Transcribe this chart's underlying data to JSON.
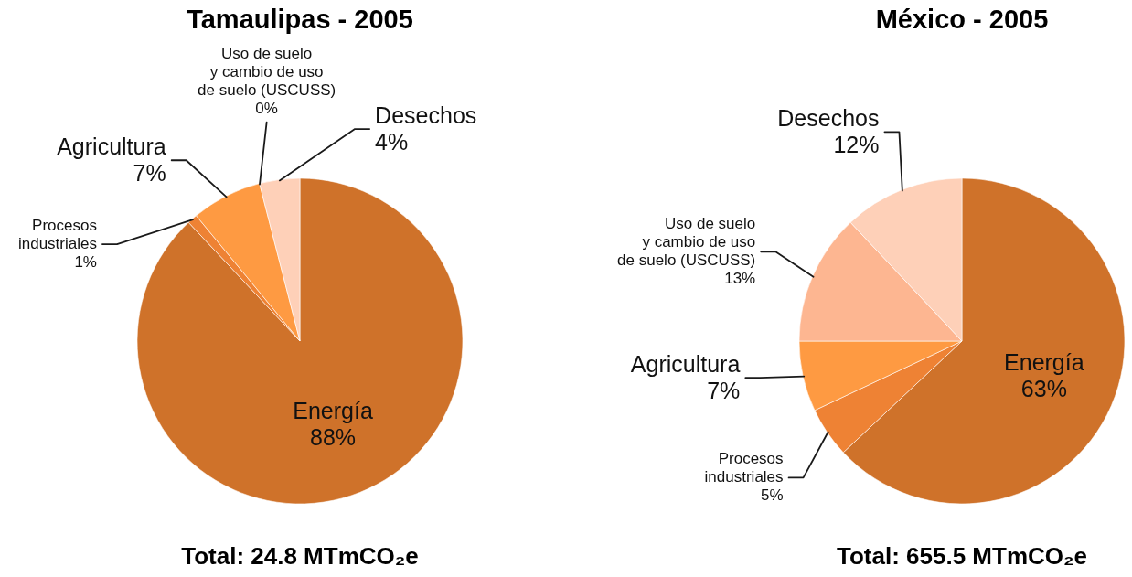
{
  "chart_data": [
    {
      "type": "pie",
      "title": "Tamaulipas - 2005",
      "categories": [
        "Energía",
        "Procesos\nindustriales",
        "Agricultura",
        "Uso de suelo\ny cambio de uso\nde suelo (USCUSS)",
        "Desechos"
      ],
      "values": [
        88,
        1,
        7,
        0,
        4
      ],
      "colors": [
        "#cf722a",
        "#ee8234",
        "#fe9a42",
        "#fdb691",
        "#fed0b8"
      ],
      "value_labels": [
        "88%",
        "1%",
        "7%",
        "0%",
        "4%"
      ],
      "annotations": [
        "Total: 24.8 MTmCO₂e"
      ]
    },
    {
      "type": "pie",
      "title": "México - 2005",
      "categories": [
        "Energía",
        "Procesos\nindustriales",
        "Agricultura",
        "Uso de suelo\ny cambio de uso\nde suelo (USCUSS)",
        "Desechos"
      ],
      "values": [
        63,
        5,
        7,
        13,
        12
      ],
      "colors": [
        "#cf722a",
        "#ee8538",
        "#fe9a42",
        "#fdb691",
        "#fed0b8"
      ],
      "value_labels": [
        "63%",
        "5%",
        "7%",
        "13%",
        "12%"
      ],
      "annotations": [
        "Total: 655.5 MTmCO₂e"
      ]
    }
  ]
}
